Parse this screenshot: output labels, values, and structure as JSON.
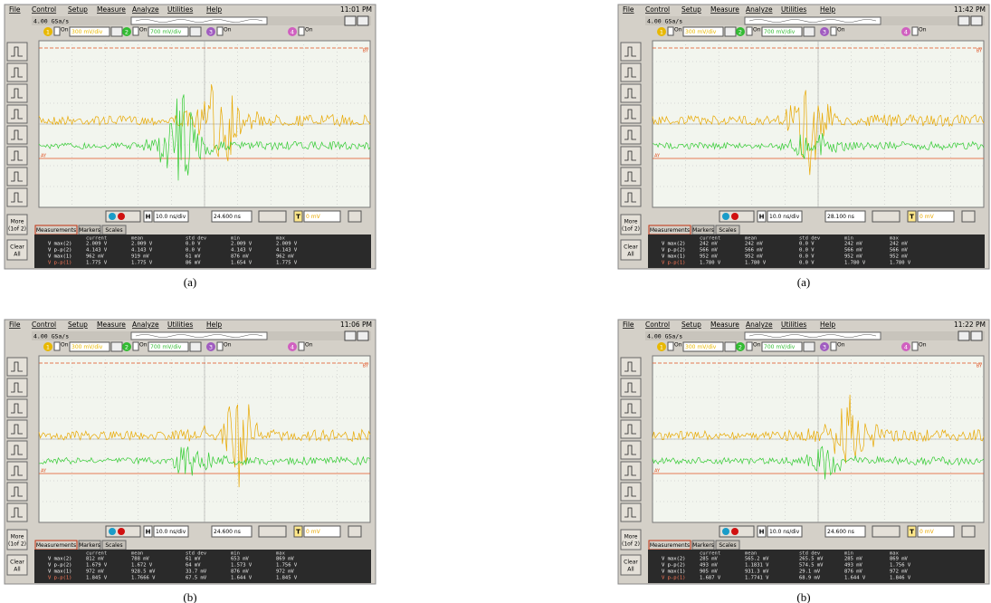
{
  "menu": [
    "File",
    "Control",
    "Setup",
    "Measure",
    "Analyze",
    "Utilities",
    "Help"
  ],
  "sidebar": {
    "more": "More",
    "more_page": "(1of 2)",
    "clear": "Clear",
    "clear_sub": "All"
  },
  "tabs": [
    "Measurements",
    "Markers",
    "Scales"
  ],
  "table_header": [
    "current",
    "mean",
    "std dev",
    "min",
    "max"
  ],
  "channel_on": "On",
  "h_label": "H",
  "t_label": "T",
  "marker_b": "BY",
  "marker_a": "AY",
  "panels": [
    {
      "caption": "(a)",
      "time": "11:01 PM",
      "sample_rate": "4.00 GSa/s",
      "channels": [
        {
          "num": "1",
          "scale": "300 mV/div"
        },
        {
          "num": "2",
          "scale": "700 mV/div"
        },
        {
          "num": "3"
        },
        {
          "num": "4"
        }
      ],
      "timebase": "10.0 ns/div",
      "delay": "24.600 ns",
      "trigger": "0 mV",
      "rows": [
        {
          "label": "V max(2)",
          "values": [
            "2.009 V",
            "2.009 V",
            "0.0 V",
            "2.009 V",
            "2.009 V"
          ]
        },
        {
          "label": "V p-p(2)",
          "values": [
            "4.143 V",
            "4.143 V",
            "0.0 V",
            "4.143 V",
            "4.143 V"
          ]
        },
        {
          "label": "V max(1)",
          "values": [
            "962 mV",
            "919 mV",
            "61 mV",
            "876 mV",
            "962 mV"
          ]
        },
        {
          "label": "V p-p(1)",
          "values": [
            "1.775 V",
            "1.775 V",
            "86 mV",
            "1.654 V",
            "1.775 V"
          ]
        }
      ]
    },
    {
      "caption": "(a)",
      "time": "11:42 PM",
      "sample_rate": "4.00 GSa/s",
      "channels": [
        {
          "num": "1",
          "scale": "300 mV/div"
        },
        {
          "num": "2",
          "scale": "700 mV/div"
        },
        {
          "num": "3"
        },
        {
          "num": "4"
        }
      ],
      "timebase": "10.0 ns/div",
      "delay": "28.100 ns",
      "trigger": "0 mV",
      "rows": [
        {
          "label": "V max(2)",
          "values": [
            "242 mV",
            "242 mV",
            "0.0 V",
            "242 mV",
            "242 mV"
          ]
        },
        {
          "label": "V p-p(2)",
          "values": [
            "566 mV",
            "566 mV",
            "0.0 V",
            "566 mV",
            "566 mV"
          ]
        },
        {
          "label": "V max(1)",
          "values": [
            "952 mV",
            "952 mV",
            "0.0 V",
            "952 mV",
            "952 mV"
          ]
        },
        {
          "label": "V p-p(1)",
          "values": [
            "1.780 V",
            "1.780 V",
            "0.0 V",
            "1.780 V",
            "1.780 V"
          ]
        }
      ]
    },
    {
      "caption": "(b)",
      "time": "11:06 PM",
      "sample_rate": "4.00 GSa/s",
      "channels": [
        {
          "num": "1",
          "scale": "300 mV/div"
        },
        {
          "num": "2",
          "scale": "700 mV/div"
        },
        {
          "num": "3"
        },
        {
          "num": "4"
        }
      ],
      "timebase": "10.0 ns/div",
      "delay": "24.600 ns",
      "trigger": "0 mV",
      "rows": [
        {
          "label": "V max(2)",
          "values": [
            "812 mV",
            "788 mV",
            "61 mV",
            "653 mV",
            "869 mV"
          ]
        },
        {
          "label": "V p-p(2)",
          "values": [
            "1.679 V",
            "1.672 V",
            "64 mV",
            "1.573 V",
            "1.756 V"
          ]
        },
        {
          "label": "V max(1)",
          "values": [
            "972 mV",
            "928.5 mV",
            "33.7 mV",
            "876 mV",
            "972 mV"
          ]
        },
        {
          "label": "V p-p(1)",
          "values": [
            "1.845 V",
            "1.7666 V",
            "67.5 mV",
            "1.644 V",
            "1.845 V"
          ]
        }
      ]
    },
    {
      "caption": "(b)",
      "time": "11:22 PM",
      "sample_rate": "4.00 GSa/s",
      "channels": [
        {
          "num": "1",
          "scale": "300 mV/div"
        },
        {
          "num": "2",
          "scale": "700 mV/div"
        },
        {
          "num": "3"
        },
        {
          "num": "4"
        }
      ],
      "timebase": "10.0 ns/div",
      "delay": "24.600 ns",
      "trigger": "0 mV",
      "rows": [
        {
          "label": "V max(2)",
          "values": [
            "285 mV",
            "565.2 mV",
            "265.5 mV",
            "285 mV",
            "869 mV"
          ]
        },
        {
          "label": "V p-p(2)",
          "values": [
            "493 mV",
            "1.1831 V",
            "574.5 mV",
            "493 mV",
            "1.756 V"
          ]
        },
        {
          "label": "V max(1)",
          "values": [
            "905 mV",
            "931.3 mV",
            "29.1 mV",
            "876 mV",
            "972 mV"
          ]
        },
        {
          "label": "V p-p(1)",
          "values": [
            "1.687 V",
            "1.7741 V",
            "68.9 mV",
            "1.644 V",
            "1.846 V"
          ]
        }
      ]
    }
  ]
}
